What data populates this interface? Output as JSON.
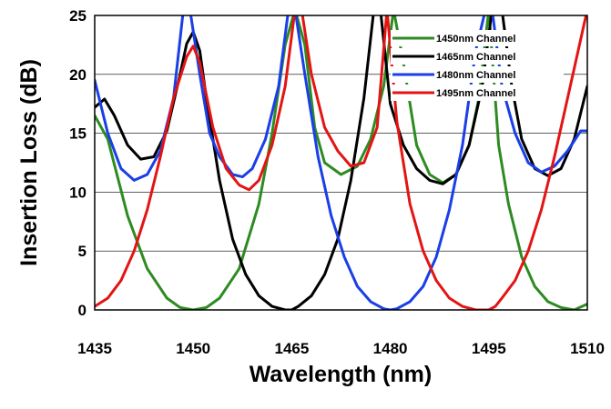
{
  "chart_data": {
    "type": "line",
    "title": "",
    "xlabel": "Wavelength (nm)",
    "ylabel": "Insertion Loss (dB)",
    "xlim": [
      1435,
      1510
    ],
    "ylim": [
      0,
      25
    ],
    "xticks": [
      "1435",
      "1450",
      "1465",
      "1480",
      "1495",
      "1510"
    ],
    "yticks": [
      "0",
      "5",
      "10",
      "15",
      "20",
      "25"
    ],
    "grid": "horizontal",
    "legend_position": "top-right",
    "series": [
      {
        "name": "1450nm Channel",
        "color": "#2e8b22",
        "x": [
          1435,
          1437,
          1440,
          1443,
          1446,
          1448,
          1450,
          1452,
          1454,
          1457,
          1460,
          1462,
          1464,
          1465.5,
          1467,
          1468.5,
          1470,
          1472.5,
          1475,
          1477,
          1479,
          1480.5,
          1482,
          1484,
          1486,
          1488,
          1490,
          1492,
          1493.5,
          1495,
          1496.5,
          1498,
          1500,
          1502,
          1504,
          1506,
          1508,
          1510
        ],
        "y": [
          16.5,
          14.5,
          8.0,
          3.5,
          1.0,
          0.2,
          0.0,
          0.2,
          1.0,
          3.5,
          9.0,
          15.0,
          22.5,
          25.5,
          22.5,
          15.5,
          12.5,
          11.5,
          12.2,
          14.5,
          19.0,
          25.5,
          21.0,
          14.0,
          11.5,
          10.8,
          11.5,
          14.0,
          18.0,
          25.5,
          14.0,
          9.0,
          4.5,
          2.0,
          0.7,
          0.2,
          0.0,
          0.5
        ]
      },
      {
        "name": "1465nm Channel",
        "color": "#000000",
        "x": [
          1435,
          1436.5,
          1438,
          1440,
          1442,
          1444,
          1446,
          1448,
          1449,
          1450,
          1451,
          1452,
          1454,
          1456,
          1458,
          1460,
          1462,
          1464,
          1465,
          1466,
          1468,
          1470,
          1472,
          1474,
          1476,
          1477.5,
          1478.5,
          1480,
          1482,
          1484,
          1486,
          1488,
          1490,
          1492,
          1494,
          1495.5,
          1497,
          1498.5,
          1500,
          1502,
          1504,
          1506,
          1508,
          1510
        ],
        "y": [
          17.2,
          17.9,
          16.5,
          14.0,
          12.8,
          13.0,
          15.2,
          20.0,
          22.6,
          23.6,
          22.0,
          18.0,
          11.0,
          6.0,
          3.0,
          1.2,
          0.3,
          0.0,
          0.0,
          0.3,
          1.2,
          3.0,
          6.0,
          11.0,
          18.0,
          25.5,
          25.5,
          17.5,
          14.0,
          12.0,
          11.0,
          10.7,
          11.5,
          14.0,
          19.0,
          25.5,
          25.5,
          19.0,
          14.5,
          12.0,
          11.4,
          12.0,
          14.5,
          19.0
        ]
      },
      {
        "name": "1480nm Channel",
        "color": "#1a3fe6",
        "x": [
          1435,
          1437,
          1439,
          1441,
          1443,
          1445,
          1447,
          1448.5,
          1449.5,
          1451,
          1452.5,
          1454,
          1456,
          1457.5,
          1459,
          1461,
          1463,
          1464.5,
          1465.5,
          1467,
          1469,
          1471,
          1473,
          1475,
          1477,
          1479,
          1480,
          1481,
          1483,
          1485,
          1487,
          1489,
          1491,
          1493,
          1494.5,
          1495.5,
          1497,
          1499,
          1501,
          1503,
          1505,
          1507,
          1509,
          1510
        ],
        "y": [
          19.5,
          15.0,
          12.0,
          11.0,
          11.5,
          13.5,
          18.0,
          25.5,
          25.5,
          20.0,
          15.0,
          13.0,
          11.5,
          11.3,
          12.0,
          14.5,
          19.0,
          25.5,
          25.5,
          20.0,
          13.0,
          8.0,
          4.5,
          2.0,
          0.7,
          0.1,
          0.0,
          0.1,
          0.7,
          2.0,
          4.5,
          8.5,
          14.0,
          22.0,
          25.5,
          25.5,
          19.0,
          15.0,
          12.5,
          11.7,
          12.2,
          13.5,
          15.2,
          15.2
        ]
      },
      {
        "name": "1495nm Channel",
        "color": "#e31414",
        "x": [
          1435,
          1437,
          1439,
          1441,
          1443,
          1445,
          1447,
          1449,
          1450,
          1451,
          1453,
          1455,
          1457,
          1458.5,
          1460,
          1462,
          1464,
          1465.5,
          1466.5,
          1468,
          1470,
          1472,
          1474,
          1476,
          1478,
          1479.5,
          1481,
          1483,
          1485,
          1487,
          1489,
          1491,
          1493,
          1495,
          1496,
          1497,
          1499,
          1501,
          1503,
          1505,
          1507,
          1509,
          1510
        ],
        "y": [
          0.3,
          1.0,
          2.5,
          5.0,
          8.5,
          13.0,
          18.0,
          21.5,
          22.4,
          21.0,
          15.5,
          12.0,
          10.6,
          10.2,
          11.0,
          14.0,
          19.0,
          25.5,
          25.5,
          20.0,
          15.5,
          13.5,
          12.2,
          12.5,
          15.5,
          25.5,
          16.0,
          9.0,
          5.0,
          2.5,
          1.0,
          0.3,
          0.0,
          0.0,
          0.3,
          1.0,
          2.5,
          5.0,
          8.5,
          13.0,
          18.0,
          23.0,
          25.5
        ]
      }
    ]
  }
}
